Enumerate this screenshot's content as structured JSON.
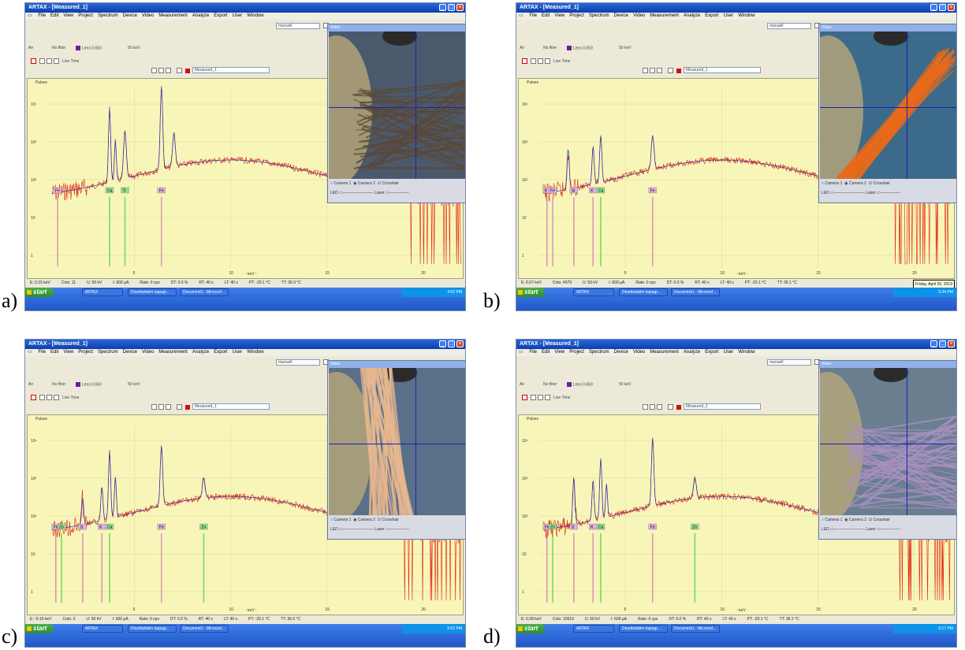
{
  "panels": [
    {
      "label": "a)",
      "window_title": "ARTAX - [Measured_1]",
      "menu": [
        "File",
        "Edit",
        "View",
        "Project",
        "Spectrum",
        "Device",
        "Video",
        "Measurement",
        "Analyze",
        "Export",
        "User",
        "Window"
      ],
      "toolbar_combo": "manuell",
      "toolbar_texts": [
        "Air",
        "No filter",
        "Lens 0.650",
        "50 keV",
        "Live Time",
        "Measured_1"
      ],
      "plot_caption": "Pulses",
      "y_ticks": [
        "10⁴",
        "10³",
        "10²",
        "10",
        "1"
      ],
      "x_ticks": [
        "5",
        "10",
        "15",
        "20"
      ],
      "x_unit": "- keV -",
      "video_title": "Video",
      "video_controls": [
        "Camera 1",
        "Camera 2",
        "Crosshair"
      ],
      "video_controls2": [
        "LED",
        "Laser"
      ],
      "status": [
        "E: 0.15 keV",
        "Cnts: 11",
        "U: 50 kV",
        "I: 600 µA",
        "Rate: 0 cps",
        "DT: 0.0 %",
        "RT: 40 s",
        "LT: 40 s",
        "PT: -20.1 °C",
        "TT: 36.0 °C"
      ],
      "taskbar": {
        "start": "start",
        "items": [
          "ARTAX",
          "Dourtbdiatim kapagi...",
          "Document1 - Microsof..."
        ],
        "clock": "4:02 PM",
        "tooltip": ""
      },
      "element_labels": [
        "Fe",
        "Ti",
        "Ca",
        "Fe"
      ],
      "colors": {
        "spectrum": "#e02010",
        "fit": "#2030c0",
        "marker_pink": "#d070b0",
        "marker_green": "#40d040"
      }
    },
    {
      "label": "b)",
      "window_title": "ARTAX - [Measured_1]",
      "menu": [
        "File",
        "Edit",
        "View",
        "Project",
        "Spectrum",
        "Device",
        "Video",
        "Measurement",
        "Analyze",
        "Export",
        "User",
        "Window"
      ],
      "toolbar_combo": "manuell",
      "toolbar_texts": [
        "Air",
        "No filter",
        "Lens 0.650",
        "50 keV",
        "Live Time",
        "Measured_1"
      ],
      "plot_caption": "Pulses",
      "y_ticks": [
        "10⁴",
        "10³",
        "10²",
        "10",
        "1"
      ],
      "x_ticks": [
        "5",
        "10",
        "15",
        "20"
      ],
      "x_unit": "- keV -",
      "video_title": "Video",
      "video_controls": [
        "Camera 1",
        "Camera 2",
        "Crosshair"
      ],
      "video_controls2": [
        "LED",
        "Laser"
      ],
      "status": [
        "E: 0.07 keV",
        "Cnts: 4979",
        "U: 50 kV",
        "I: 600 µA",
        "Rate: 0 cps",
        "DT: 0.0 %",
        "RT: 40 s",
        "LT: 40 s",
        "PT: -20.1 °C",
        "TT: 36.1 °C"
      ],
      "taskbar": {
        "start": "start",
        "items": [
          "ARTAX",
          "Dourtbdiatim kapagi...",
          "Document1 - Microsof..."
        ],
        "clock": "5:34 PM",
        "tooltip": "Friday, April 26, 2019"
      },
      "element_labels": [
        "K",
        "Fe",
        "Si",
        "K",
        "Ca",
        "Fe"
      ],
      "colors": {
        "spectrum": "#e02010",
        "fit": "#2030c0",
        "marker_pink": "#d070b0",
        "marker_green": "#40d040"
      }
    },
    {
      "label": "c)",
      "window_title": "ARTAX - [Measured_1]",
      "menu": [
        "File",
        "Edit",
        "View",
        "Project",
        "Spectrum",
        "Device",
        "Video",
        "Measurement",
        "Analyze",
        "Export",
        "User",
        "Window"
      ],
      "toolbar_combo": "manuell",
      "toolbar_texts": [
        "Air",
        "No filter",
        "Lens 0.650",
        "50 keV",
        "Live Time",
        "Measured_1"
      ],
      "plot_caption": "Pulses",
      "y_ticks": [
        "10⁴",
        "10³",
        "10²",
        "10",
        "1"
      ],
      "x_ticks": [
        "5",
        "10",
        "15",
        "20"
      ],
      "x_unit": "- keV -",
      "video_title": "Video",
      "video_controls": [
        "Camera 1",
        "Camera 2",
        "Crosshair"
      ],
      "video_controls2": [
        "LED",
        "Laser"
      ],
      "status": [
        "E: -0.10 keV",
        "Cnts: 3",
        "U: 50 kV",
        "I: 600 µA",
        "Rate: 0 cps",
        "DT: 0.0 %",
        "RT: 40 s",
        "LT: 40 s",
        "PT: -20.1 °C",
        "TT: 36.0 °C"
      ],
      "taskbar": {
        "start": "start",
        "items": [
          "ARTAX",
          "Dourtbdiatim kapagi...",
          "Document1 - Microsof..."
        ],
        "clock": "5:02 PM",
        "tooltip": ""
      },
      "element_labels": [
        "Fe",
        "Zn",
        "S",
        "K",
        "Ca",
        "Fe",
        "Zn"
      ],
      "colors": {
        "spectrum": "#e02010",
        "fit": "#2030c0",
        "marker_pink": "#d070b0",
        "marker_green": "#40d040"
      }
    },
    {
      "label": "d)",
      "window_title": "ARTAX - [Measured_1]",
      "menu": [
        "File",
        "Edit",
        "View",
        "Project",
        "Spectrum",
        "Device",
        "Video",
        "Measurement",
        "Analyze",
        "Export",
        "User",
        "Window"
      ],
      "toolbar_combo": "manuell",
      "toolbar_texts": [
        "Air",
        "No filter",
        "Lens 0.650",
        "50 keV",
        "Live Time",
        "Measured_1"
      ],
      "plot_caption": "Pulses",
      "y_ticks": [
        "10⁴",
        "10³",
        "10²",
        "10",
        "1"
      ],
      "x_ticks": [
        "5",
        "10",
        "15",
        "20"
      ],
      "x_unit": "- keV -",
      "video_title": "Video",
      "video_controls": [
        "Camera 1",
        "Camera 2",
        "Crosshair"
      ],
      "video_controls2": [
        "LED",
        "Laser"
      ],
      "status": [
        "E: 0.08 keV",
        "Cnts: 10619",
        "U: 50 kV",
        "I: 600 µA",
        "Rate: 0 cps",
        "DT: 0.0 %",
        "RT: 40 s",
        "LT: 40 s",
        "PT: -20.1 °C",
        "TT: 36.2 °C"
      ],
      "taskbar": {
        "start": "start",
        "items": [
          "ARTAX",
          "Dourtbdiatim kapagi...",
          "Document1 - Microsof..."
        ],
        "clock": "5:17 PM",
        "tooltip": ""
      },
      "element_labels": [
        "Fe",
        "Zn",
        "S",
        "K",
        "Ca",
        "Fe",
        "Zn"
      ],
      "colors": {
        "spectrum": "#e02010",
        "fit": "#2030c0",
        "marker_pink": "#d070b0",
        "marker_green": "#40d040"
      }
    }
  ]
}
